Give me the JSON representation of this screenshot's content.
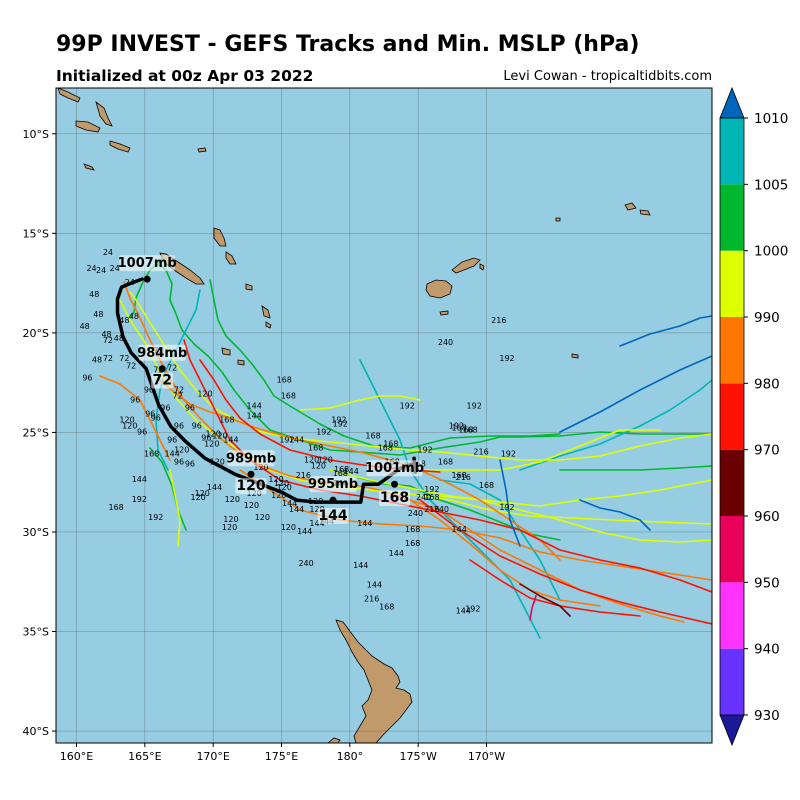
{
  "header": {
    "title": "99P INVEST - GEFS Tracks and Min. MSLP (hPa)",
    "subtitle": "Initialized at 00z Apr 03 2022",
    "credit": "Levi Cowan - tropicaltidbits.com"
  },
  "map": {
    "lon_range": [
      158.5,
      206.5
    ],
    "lat_range": [
      -40.6,
      -7.7
    ],
    "ocean_color": "#97cde3",
    "land_color": "#c19a6b",
    "x_ticks": [
      {
        "lon": 160,
        "label": "160°E"
      },
      {
        "lon": 165,
        "label": "165°E"
      },
      {
        "lon": 170,
        "label": "170°E"
      },
      {
        "lon": 175,
        "label": "175°E"
      },
      {
        "lon": 180,
        "label": "180°"
      },
      {
        "lon": 185,
        "label": "175°W"
      },
      {
        "lon": 190,
        "label": "170°W"
      }
    ],
    "y_ticks": [
      {
        "lat": -10,
        "label": "10°S"
      },
      {
        "lat": -15,
        "label": "15°S"
      },
      {
        "lat": -20,
        "label": "20°S"
      },
      {
        "lat": -25,
        "label": "25°S"
      },
      {
        "lat": -30,
        "label": "30°S"
      },
      {
        "lat": -35,
        "label": "35°S"
      },
      {
        "lat": -40,
        "label": "40°S"
      }
    ]
  },
  "colorbar": {
    "levels": [
      930,
      940,
      950,
      960,
      970,
      980,
      990,
      1000,
      1005,
      1010
    ],
    "colors": [
      "#6633ff",
      "#ff33ff",
      "#e8005a",
      "#6b0000",
      "#ff1100",
      "#ff7700",
      "#ddff00",
      "#00b82e",
      "#00b5b5"
    ],
    "low_color": "#1a1a99",
    "high_color": "#0066bb"
  },
  "ensemble_mean": {
    "track": [
      {
        "lon": 164.8,
        "lat": -17.3
      },
      {
        "lon": 164.0,
        "lat": -17.5
      },
      {
        "lon": 163.3,
        "lat": -17.7
      },
      {
        "lon": 163.0,
        "lat": -18.3
      },
      {
        "lon": 163.0,
        "lat": -19.0
      },
      {
        "lon": 163.4,
        "lat": -20.2
      },
      {
        "lon": 164.0,
        "lat": -21.0
      },
      {
        "lon": 165.1,
        "lat": -21.8
      },
      {
        "lon": 165.6,
        "lat": -22.8
      },
      {
        "lon": 166.0,
        "lat": -23.6
      },
      {
        "lon": 166.9,
        "lat": -24.7
      },
      {
        "lon": 167.9,
        "lat": -25.4
      },
      {
        "lon": 169.4,
        "lat": -26.3
      },
      {
        "lon": 171.6,
        "lat": -27.1
      },
      {
        "lon": 173.5,
        "lat": -27.6
      },
      {
        "lon": 175.0,
        "lat": -28.0
      },
      {
        "lon": 176.1,
        "lat": -28.4
      },
      {
        "lon": 177.6,
        "lat": -28.5
      },
      {
        "lon": 180.8,
        "lat": -28.5
      },
      {
        "lon": 181.0,
        "lat": -27.6
      },
      {
        "lon": 182.1,
        "lat": -27.6
      },
      {
        "lon": 183.7,
        "lat": -26.8
      },
      {
        "lon": 184.6,
        "lat": -26.6
      },
      {
        "lon": 184.8,
        "lat": -27.0
      },
      {
        "lon": 184.7,
        "lat": -26.3
      }
    ],
    "pressure_labels": [
      {
        "lon": 164.0,
        "lat": -16.7,
        "text": "1007mb"
      },
      {
        "lon": 165.1,
        "lat": -21.2,
        "text": "984mb"
      },
      {
        "lon": 171.6,
        "lat": -26.5,
        "text": "989mb"
      },
      {
        "lon": 177.6,
        "lat": -27.8,
        "text": "995mb"
      },
      {
        "lon": 182.1,
        "lat": -27.0,
        "text": "1001mb"
      }
    ],
    "hour_labels": [
      {
        "lon": 165.1,
        "lat": -22.6,
        "text": "72"
      },
      {
        "lon": 171.6,
        "lat": -27.9,
        "text": "120"
      },
      {
        "lon": 177.6,
        "lat": -29.4,
        "text": "144"
      },
      {
        "lon": 182.1,
        "lat": -28.5,
        "text": "168"
      }
    ]
  },
  "member_hour_labels": [
    {
      "lon": 162.3,
      "lat": -16.1,
      "text": "24"
    },
    {
      "lon": 161.1,
      "lat": -16.9,
      "text": "24"
    },
    {
      "lon": 161.8,
      "lat": -17.0,
      "text": "24"
    },
    {
      "lon": 162.8,
      "lat": -16.9,
      "text": "24"
    },
    {
      "lon": 163.9,
      "lat": -17.6,
      "text": "24"
    },
    {
      "lon": 161.3,
      "lat": -18.2,
      "text": "48"
    },
    {
      "lon": 160.6,
      "lat": -19.8,
      "text": "48"
    },
    {
      "lon": 161.6,
      "lat": -19.2,
      "text": "48"
    },
    {
      "lon": 163.5,
      "lat": -19.5,
      "text": "48"
    },
    {
      "lon": 164.2,
      "lat": -19.3,
      "text": "48"
    },
    {
      "lon": 162.2,
      "lat": -20.2,
      "text": "48"
    },
    {
      "lon": 163.1,
      "lat": -20.4,
      "text": "48"
    },
    {
      "lon": 161.5,
      "lat": -21.5,
      "text": "48"
    },
    {
      "lon": 162.3,
      "lat": -20.5,
      "text": "72"
    },
    {
      "lon": 162.3,
      "lat": -21.4,
      "text": "72"
    },
    {
      "lon": 163.5,
      "lat": -21.4,
      "text": "72"
    },
    {
      "lon": 164.0,
      "lat": -21.8,
      "text": "72"
    },
    {
      "lon": 166.0,
      "lat": -21.0,
      "text": "72"
    },
    {
      "lon": 166.0,
      "lat": -22.0,
      "text": "72"
    },
    {
      "lon": 167.0,
      "lat": -21.9,
      "text": "72"
    },
    {
      "lon": 167.5,
      "lat": -23.0,
      "text": "72"
    },
    {
      "lon": 167.4,
      "lat": -23.3,
      "text": "72"
    },
    {
      "lon": 160.8,
      "lat": -22.4,
      "text": "96"
    },
    {
      "lon": 164.3,
      "lat": -23.5,
      "text": "96"
    },
    {
      "lon": 165.3,
      "lat": -23.0,
      "text": "96"
    },
    {
      "lon": 165.4,
      "lat": -24.2,
      "text": "96"
    },
    {
      "lon": 165.8,
      "lat": -24.4,
      "text": "96"
    },
    {
      "lon": 166.5,
      "lat": -23.9,
      "text": "96"
    },
    {
      "lon": 167.5,
      "lat": -24.8,
      "text": "96"
    },
    {
      "lon": 168.3,
      "lat": -23.9,
      "text": "96"
    },
    {
      "lon": 168.8,
      "lat": -24.8,
      "text": "96"
    },
    {
      "lon": 164.8,
      "lat": -25.1,
      "text": "96"
    },
    {
      "lon": 169.5,
      "lat": -25.4,
      "text": "96"
    },
    {
      "lon": 167.0,
      "lat": -25.5,
      "text": "96"
    },
    {
      "lon": 167.5,
      "lat": -26.6,
      "text": "96"
    },
    {
      "lon": 168.3,
      "lat": -26.7,
      "text": "96"
    },
    {
      "lon": 169.4,
      "lat": -23.2,
      "text": "120"
    },
    {
      "lon": 163.7,
      "lat": -24.5,
      "text": "120"
    },
    {
      "lon": 163.9,
      "lat": -24.8,
      "text": "120"
    },
    {
      "lon": 170.0,
      "lat": -25.2,
      "text": "120"
    },
    {
      "lon": 169.9,
      "lat": -25.7,
      "text": "120"
    },
    {
      "lon": 170.5,
      "lat": -25.3,
      "text": "120"
    },
    {
      "lon": 167.7,
      "lat": -26.0,
      "text": "120"
    },
    {
      "lon": 170.3,
      "lat": -26.6,
      "text": "120"
    },
    {
      "lon": 173.5,
      "lat": -26.9,
      "text": "120"
    },
    {
      "lon": 174.6,
      "lat": -27.5,
      "text": "120"
    },
    {
      "lon": 175.0,
      "lat": -27.7,
      "text": "120"
    },
    {
      "lon": 175.2,
      "lat": -27.9,
      "text": "120"
    },
    {
      "lon": 174.8,
      "lat": -28.3,
      "text": "120"
    },
    {
      "lon": 173.0,
      "lat": -28.2,
      "text": "120"
    },
    {
      "lon": 172.8,
      "lat": -28.8,
      "text": "120"
    },
    {
      "lon": 169.2,
      "lat": -28.2,
      "text": "120"
    },
    {
      "lon": 168.9,
      "lat": -28.4,
      "text": "120"
    },
    {
      "lon": 171.4,
      "lat": -28.5,
      "text": "120"
    },
    {
      "lon": 171.3,
      "lat": -29.5,
      "text": "120"
    },
    {
      "lon": 173.6,
      "lat": -29.4,
      "text": "120"
    },
    {
      "lon": 171.2,
      "lat": -29.9,
      "text": "120"
    },
    {
      "lon": 175.5,
      "lat": -29.9,
      "text": "120"
    },
    {
      "lon": 177.2,
      "lat": -26.5,
      "text": "120"
    },
    {
      "lon": 178.2,
      "lat": -26.5,
      "text": "120"
    },
    {
      "lon": 177.7,
      "lat": -26.8,
      "text": "120"
    },
    {
      "lon": 177.5,
      "lat": -28.6,
      "text": "120"
    },
    {
      "lon": 177.6,
      "lat": -29.0,
      "text": "120"
    },
    {
      "lon": 173.0,
      "lat": -23.8,
      "text": "144"
    },
    {
      "lon": 173.0,
      "lat": -24.3,
      "text": "144"
    },
    {
      "lon": 171.3,
      "lat": -25.5,
      "text": "144"
    },
    {
      "lon": 176.1,
      "lat": -25.5,
      "text": "144"
    },
    {
      "lon": 167.0,
      "lat": -26.2,
      "text": "144"
    },
    {
      "lon": 164.6,
      "lat": -27.5,
      "text": "144"
    },
    {
      "lon": 170.1,
      "lat": -27.9,
      "text": "144"
    },
    {
      "lon": 175.6,
      "lat": -28.7,
      "text": "144"
    },
    {
      "lon": 176.1,
      "lat": -29.0,
      "text": "144"
    },
    {
      "lon": 179.3,
      "lat": -27.7,
      "text": "144"
    },
    {
      "lon": 180.1,
      "lat": -27.1,
      "text": "144"
    },
    {
      "lon": 177.6,
      "lat": -29.7,
      "text": "144"
    },
    {
      "lon": 178.3,
      "lat": -29.6,
      "text": "144"
    },
    {
      "lon": 176.7,
      "lat": -30.1,
      "text": "144"
    },
    {
      "lon": 181.1,
      "lat": -29.7,
      "text": "144"
    },
    {
      "lon": 183.4,
      "lat": -31.2,
      "text": "144"
    },
    {
      "lon": 180.8,
      "lat": -31.8,
      "text": "144"
    },
    {
      "lon": 181.8,
      "lat": -32.8,
      "text": "144"
    },
    {
      "lon": 188.0,
      "lat": -30.0,
      "text": "144"
    },
    {
      "lon": 188.3,
      "lat": -34.1,
      "text": "144"
    },
    {
      "lon": 175.2,
      "lat": -22.5,
      "text": "168"
    },
    {
      "lon": 175.5,
      "lat": -23.3,
      "text": "168"
    },
    {
      "lon": 171.0,
      "lat": -24.5,
      "text": "168"
    },
    {
      "lon": 165.5,
      "lat": -26.2,
      "text": "168"
    },
    {
      "lon": 162.9,
      "lat": -28.9,
      "text": "168"
    },
    {
      "lon": 177.5,
      "lat": -25.9,
      "text": "168"
    },
    {
      "lon": 179.3,
      "lat": -27.2,
      "text": "168"
    },
    {
      "lon": 179.4,
      "lat": -27.0,
      "text": "168"
    },
    {
      "lon": 181.7,
      "lat": -25.3,
      "text": "168"
    },
    {
      "lon": 182.6,
      "lat": -25.9,
      "text": "168"
    },
    {
      "lon": 183.0,
      "lat": -25.7,
      "text": "168"
    },
    {
      "lon": 183.1,
      "lat": -26.6,
      "text": "168"
    },
    {
      "lon": 185.0,
      "lat": -26.7,
      "text": "168"
    },
    {
      "lon": 186.0,
      "lat": -28.4,
      "text": "168"
    },
    {
      "lon": 184.6,
      "lat": -30.0,
      "text": "168"
    },
    {
      "lon": 184.6,
      "lat": -30.7,
      "text": "168"
    },
    {
      "lon": 187.0,
      "lat": -26.6,
      "text": "168"
    },
    {
      "lon": 188.0,
      "lat": -27.3,
      "text": "168"
    },
    {
      "lon": 188.5,
      "lat": -25.0,
      "text": "168"
    },
    {
      "lon": 188.8,
      "lat": -25.0,
      "text": "168"
    },
    {
      "lon": 190.0,
      "lat": -27.8,
      "text": "168"
    },
    {
      "lon": 188.0,
      "lat": -24.9,
      "text": "168"
    },
    {
      "lon": 182.7,
      "lat": -33.9,
      "text": "168"
    },
    {
      "lon": 175.4,
      "lat": -25.5,
      "text": "192"
    },
    {
      "lon": 178.1,
      "lat": -25.1,
      "text": "192"
    },
    {
      "lon": 179.2,
      "lat": -24.5,
      "text": "192"
    },
    {
      "lon": 179.3,
      "lat": -24.7,
      "text": "192"
    },
    {
      "lon": 185.5,
      "lat": -26.0,
      "text": "192"
    },
    {
      "lon": 186.0,
      "lat": -28.0,
      "text": "192"
    },
    {
      "lon": 187.8,
      "lat": -24.8,
      "text": "192"
    },
    {
      "lon": 189.1,
      "lat": -23.8,
      "text": "192"
    },
    {
      "lon": 191.5,
      "lat": -21.4,
      "text": "192"
    },
    {
      "lon": 191.6,
      "lat": -26.2,
      "text": "192"
    },
    {
      "lon": 191.5,
      "lat": -28.9,
      "text": "192"
    },
    {
      "lon": 164.6,
      "lat": -28.5,
      "text": "192"
    },
    {
      "lon": 165.8,
      "lat": -29.4,
      "text": "192"
    },
    {
      "lon": 189.0,
      "lat": -34.0,
      "text": "192"
    },
    {
      "lon": 184.2,
      "lat": -23.8,
      "text": "192"
    },
    {
      "lon": 176.6,
      "lat": -27.3,
      "text": "216"
    },
    {
      "lon": 184.5,
      "lat": -26.8,
      "text": "216"
    },
    {
      "lon": 186.0,
      "lat": -29.0,
      "text": "216"
    },
    {
      "lon": 188.3,
      "lat": -27.4,
      "text": "216"
    },
    {
      "lon": 190.9,
      "lat": -19.5,
      "text": "216"
    },
    {
      "lon": 189.6,
      "lat": -26.1,
      "text": "216"
    },
    {
      "lon": 181.6,
      "lat": -33.5,
      "text": "216"
    },
    {
      "lon": 186.7,
      "lat": -29.0,
      "text": "240"
    },
    {
      "lon": 176.8,
      "lat": -31.7,
      "text": "240"
    },
    {
      "lon": 187.0,
      "lat": -20.6,
      "text": "240"
    },
    {
      "lon": 184.8,
      "lat": -29.2,
      "text": "240"
    },
    {
      "lon": 185.4,
      "lat": -28.4,
      "text": "240"
    }
  ]
}
